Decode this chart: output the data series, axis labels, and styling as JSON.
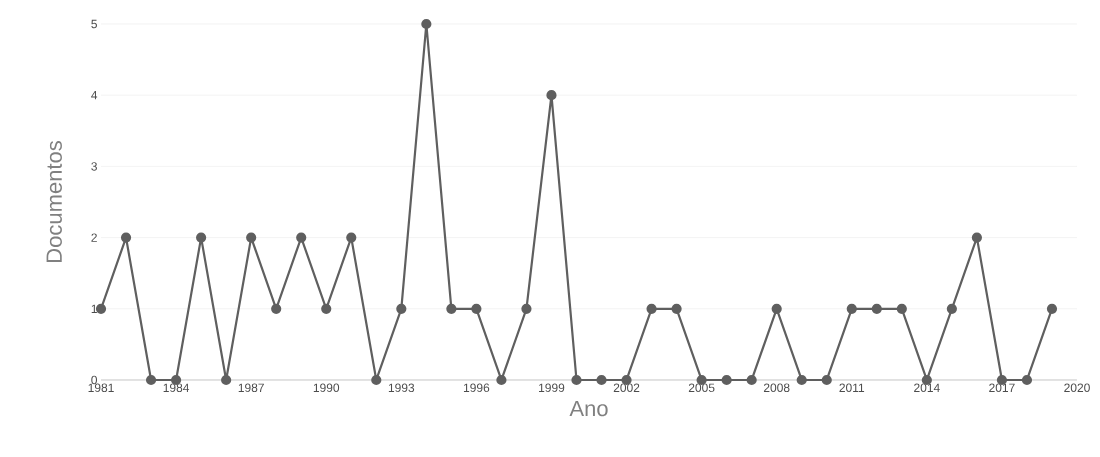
{
  "chart_data": {
    "type": "line",
    "xlabel": "Ano",
    "ylabel": "Documentos",
    "x": [
      1981,
      1982,
      1983,
      1984,
      1985,
      1986,
      1987,
      1988,
      1989,
      1990,
      1991,
      1992,
      1993,
      1994,
      1995,
      1996,
      1997,
      1998,
      1999,
      2000,
      2001,
      2002,
      2003,
      2004,
      2005,
      2006,
      2007,
      2008,
      2009,
      2010,
      2011,
      2012,
      2013,
      2014,
      2015,
      2016,
      2017,
      2018,
      2019
    ],
    "values": [
      1,
      2,
      0,
      0,
      2,
      0,
      2,
      1,
      2,
      1,
      2,
      0,
      1,
      5,
      1,
      1,
      0,
      1,
      4,
      0,
      0,
      0,
      1,
      1,
      0,
      0,
      0,
      1,
      0,
      0,
      1,
      1,
      1,
      0,
      1,
      2,
      0,
      0,
      1
    ],
    "color": "#5f5f5f",
    "marker": "circle",
    "line_style": "solid",
    "grid": "y",
    "xlim": [
      1981,
      2020
    ],
    "xticks": [
      1981,
      1984,
      1987,
      1990,
      1993,
      1996,
      1999,
      2002,
      2005,
      2008,
      2011,
      2014,
      2017,
      2020
    ],
    "ylim": [
      0,
      5
    ],
    "yticks": [
      0,
      1,
      2,
      3,
      4,
      5
    ]
  }
}
